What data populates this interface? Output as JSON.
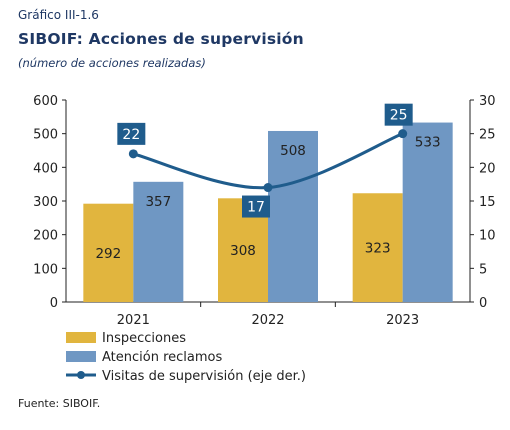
{
  "figure_label": "Gráfico III-1.6",
  "title": "SIBOIF: Acciones de supervisión",
  "subtitle": "(número de acciones realizadas)",
  "source": "Fuente: SIBOIF.",
  "colors": {
    "inspecciones": "#e1b53e",
    "atencion": "#6f97c3",
    "visitas": "#1f5c8c",
    "text": "#1f3864"
  },
  "chart_data": {
    "type": "bar",
    "categories": [
      "2021",
      "2022",
      "2023"
    ],
    "series": [
      {
        "name": "Inspecciones",
        "type": "bar",
        "axis": "left",
        "values": [
          292,
          308,
          323
        ],
        "labels": [
          "292",
          "308",
          "323"
        ]
      },
      {
        "name": "Atención reclamos",
        "type": "bar",
        "axis": "left",
        "values": [
          357,
          508,
          533
        ],
        "labels": [
          "357",
          "508",
          "533"
        ]
      },
      {
        "name": "Visitas de supervisión (eje der.)",
        "type": "line",
        "axis": "right",
        "values": [
          22,
          17,
          25
        ],
        "labels": [
          "22",
          "17",
          "25"
        ]
      }
    ],
    "y_left": {
      "min": 0,
      "max": 600,
      "ticks": [
        "0",
        "100",
        "200",
        "300",
        "400",
        "500",
        "600"
      ]
    },
    "y_right": {
      "min": 0,
      "max": 30,
      "ticks": [
        "0",
        "5",
        "10",
        "15",
        "20",
        "25",
        "30"
      ]
    },
    "legend_position": "bottom-left",
    "grid": false
  }
}
